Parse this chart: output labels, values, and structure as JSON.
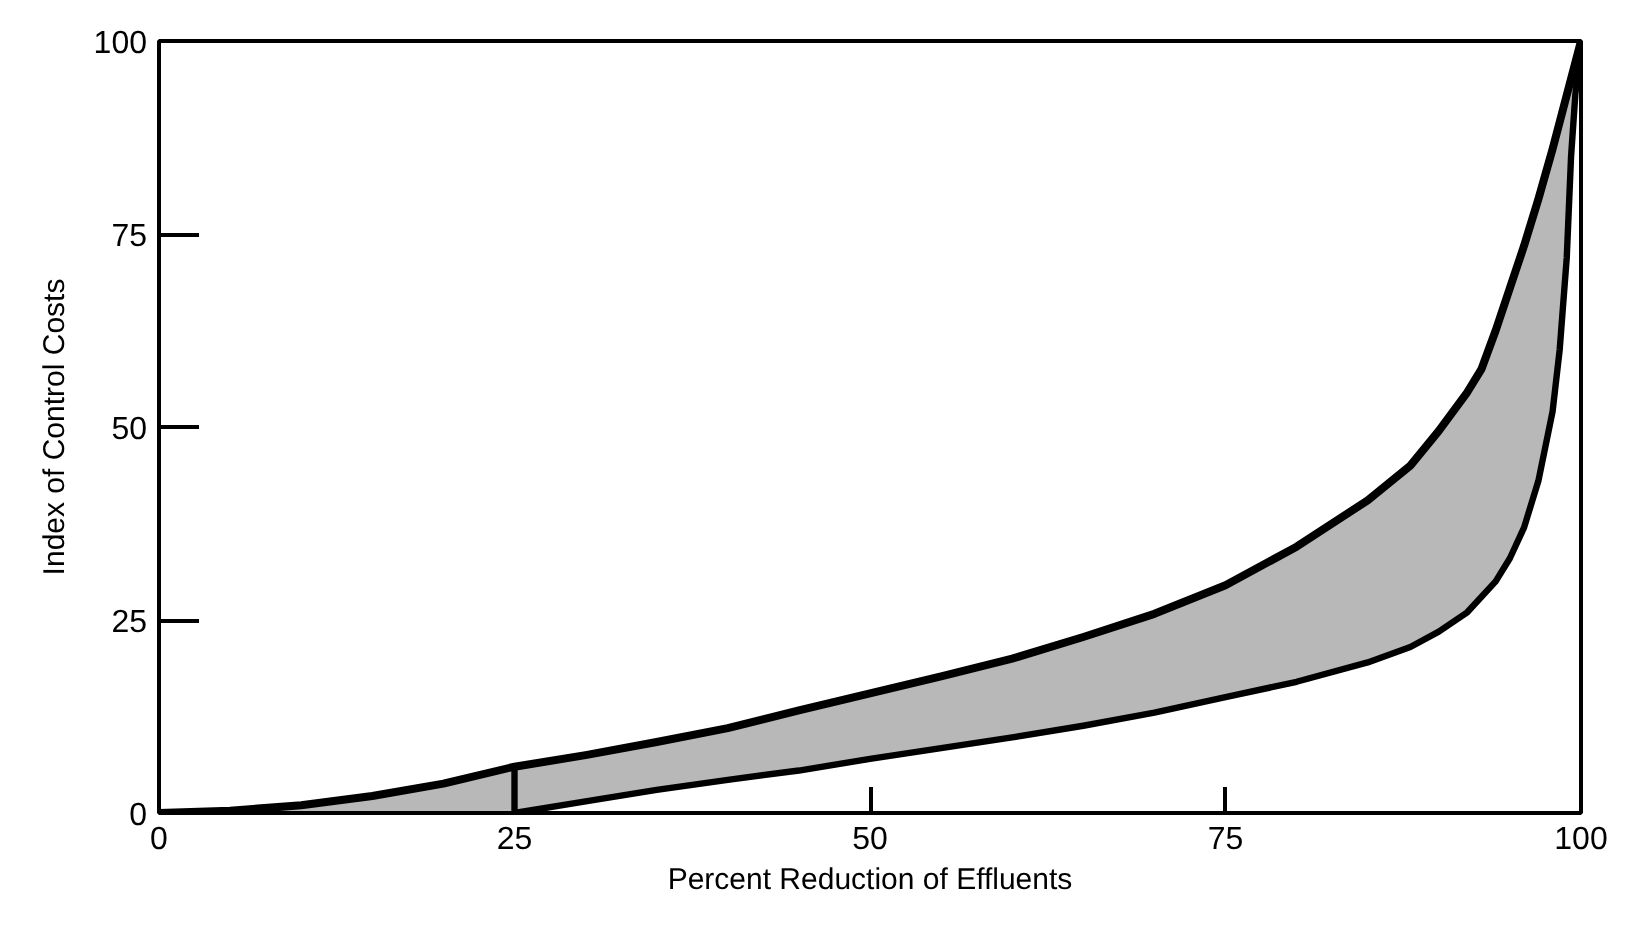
{
  "chart_data": {
    "type": "line",
    "xlabel": "Percent Reduction of Effluents",
    "ylabel": "Index of Control Costs",
    "xlim": [
      0,
      100
    ],
    "ylim": [
      0,
      100
    ],
    "xticks": [
      0,
      25,
      50,
      75,
      100
    ],
    "yticks": [
      0,
      25,
      50,
      75,
      100
    ],
    "series": [
      {
        "color": "#000000",
        "x": [
          0,
          5,
          10,
          15,
          20,
          25,
          30,
          35,
          40,
          45,
          50,
          55,
          60,
          65,
          70,
          75,
          80,
          85,
          88,
          90,
          92,
          93,
          94,
          95,
          96,
          97,
          98,
          99,
          100
        ],
        "values": [
          0,
          0.3,
          1,
          2.2,
          3.8,
          6,
          7.5,
          9.2,
          11,
          13.3,
          15.5,
          17.7,
          20,
          22.8,
          25.8,
          29.5,
          34.5,
          40.5,
          45,
          49.5,
          54.5,
          57.5,
          62.5,
          68,
          73.5,
          79.5,
          86,
          93,
          100
        ],
        "lower": [
          0,
          0,
          0,
          0,
          0,
          0,
          1.5,
          3,
          4.3,
          5.5,
          7,
          8.4,
          9.8,
          11.3,
          13,
          15,
          17,
          19.5,
          21.5,
          23.5,
          26,
          28,
          30,
          33,
          37,
          43,
          52,
          72,
          100
        ],
        "upper": [
          0,
          0.3,
          1,
          2.2,
          3.8,
          6,
          7.5,
          9.2,
          11,
          13.3,
          15.5,
          17.7,
          20,
          22.8,
          25.8,
          29.5,
          34.5,
          40.5,
          45,
          49.5,
          54.5,
          57.5,
          62.5,
          68,
          73.5,
          79.5,
          86,
          93,
          100
        ]
      },
      {
        "color": "#000000",
        "x": [
          25,
          25,
          30,
          35,
          40,
          45,
          50,
          55,
          60,
          65,
          70,
          75,
          80,
          85,
          88,
          90,
          92,
          94,
          95,
          96,
          97,
          98,
          98.5,
          99,
          99.3,
          99.6,
          100
        ],
        "values": [
          6,
          0,
          1.5,
          3,
          4.3,
          5.5,
          7,
          8.4,
          9.8,
          11.3,
          13,
          15,
          17,
          19.5,
          21.5,
          23.5,
          26,
          30,
          33,
          37,
          43,
          52,
          60,
          72,
          85,
          93,
          100
        ]
      }
    ]
  }
}
